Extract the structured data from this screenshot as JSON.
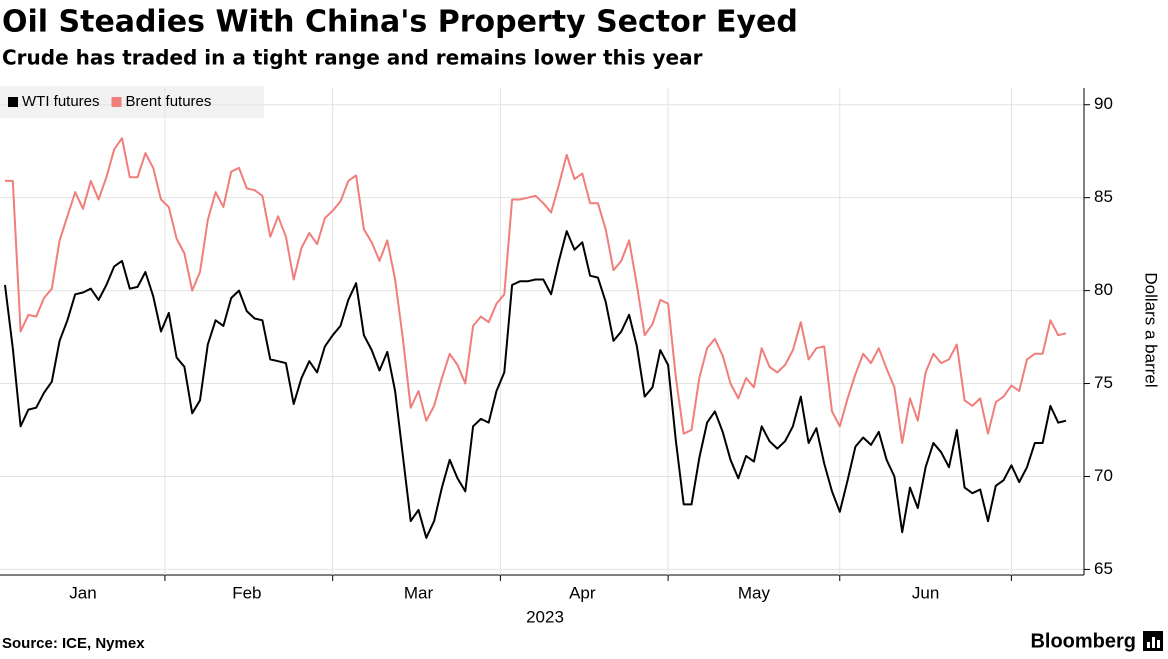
{
  "chart_data": {
    "type": "line",
    "title": "Oil Steadies With China's Property Sector Eyed",
    "subtitle": "Crude has traded in a tight range and remains lower this year",
    "ylabel": "Dollars a barrel",
    "xlabel": "2023",
    "source": "Source: ICE, Nymex",
    "brand": "Bloomberg",
    "y_axis_side": "right",
    "legend": "top-left",
    "grid": true,
    "ylim": [
      64.7,
      90.9
    ],
    "yticks": [
      65,
      70,
      75,
      80,
      85,
      90
    ],
    "categories": [
      null,
      null,
      null,
      null,
      null,
      null,
      null,
      null,
      null,
      null,
      "Jan",
      null,
      null,
      null,
      null,
      null,
      null,
      null,
      null,
      null,
      null,
      null,
      null,
      null,
      null,
      null,
      null,
      null,
      null,
      null,
      null,
      "Feb",
      null,
      null,
      null,
      null,
      null,
      null,
      null,
      null,
      null,
      null,
      null,
      null,
      null,
      null,
      null,
      null,
      null,
      null,
      null,
      null,
      null,
      "Mar",
      null,
      null,
      null,
      null,
      null,
      null,
      null,
      null,
      null,
      null,
      null,
      null,
      null,
      null,
      null,
      null,
      null,
      null,
      null,
      null,
      "Apr",
      null,
      null,
      null,
      null,
      null,
      null,
      null,
      null,
      null,
      null,
      null,
      null,
      null,
      null,
      null,
      null,
      null,
      null,
      null,
      null,
      null,
      "May",
      null,
      null,
      null,
      null,
      null,
      null,
      null,
      null,
      null,
      null,
      null,
      null,
      null,
      null,
      null,
      null,
      null,
      null,
      null,
      null,
      null,
      "Jun",
      null,
      null,
      null,
      null,
      null,
      null,
      null,
      null,
      null,
      null,
      null,
      null,
      null,
      null,
      null,
      null,
      null,
      null
    ],
    "series": [
      {
        "name": "WTI futures",
        "color": "#000000",
        "values": [
          80.3,
          76.9,
          72.7,
          73.6,
          73.7,
          74.5,
          75.1,
          77.3,
          78.4,
          79.8,
          79.9,
          80.1,
          79.5,
          80.3,
          81.3,
          81.6,
          80.1,
          80.2,
          81.0,
          79.7,
          77.8,
          78.8,
          76.4,
          75.9,
          73.4,
          74.1,
          77.1,
          78.4,
          78.1,
          79.6,
          80.0,
          78.9,
          78.5,
          78.4,
          76.3,
          76.2,
          76.1,
          73.9,
          75.3,
          76.2,
          75.6,
          77.0,
          77.6,
          78.1,
          79.5,
          80.4,
          77.6,
          76.8,
          75.7,
          76.7,
          74.6,
          71.1,
          67.6,
          68.2,
          66.7,
          67.6,
          69.4,
          70.9,
          69.9,
          69.2,
          72.7,
          73.1,
          72.9,
          74.6,
          75.6,
          80.3,
          80.5,
          80.5,
          80.6,
          80.6,
          79.8,
          81.6,
          83.2,
          82.2,
          82.6,
          80.8,
          80.7,
          79.4,
          77.3,
          77.8,
          78.7,
          77.0,
          74.3,
          74.8,
          76.8,
          76.0,
          71.9,
          68.5,
          68.5,
          71.0,
          72.9,
          73.5,
          72.4,
          70.9,
          69.9,
          71.1,
          70.8,
          72.7,
          71.9,
          71.5,
          71.9,
          72.7,
          74.3,
          71.8,
          72.6,
          70.7,
          69.2,
          68.1,
          69.8,
          71.6,
          72.1,
          71.7,
          72.4,
          70.9,
          70.0,
          67.0,
          69.4,
          68.3,
          70.5,
          71.8,
          71.3,
          70.5,
          72.5,
          69.4,
          69.1,
          69.3,
          67.6,
          69.5,
          69.8,
          70.6,
          69.7,
          70.5,
          71.8,
          71.8,
          73.8,
          72.9,
          73.0
        ]
      },
      {
        "name": "Brent futures",
        "color": "#f07e7b",
        "values": [
          85.9,
          85.9,
          77.8,
          78.7,
          78.6,
          79.6,
          80.1,
          82.7,
          84.0,
          85.3,
          84.4,
          85.9,
          84.9,
          86.1,
          87.6,
          88.2,
          86.1,
          86.1,
          87.4,
          86.6,
          84.9,
          84.5,
          82.8,
          82.0,
          80.0,
          81.0,
          83.8,
          85.3,
          84.5,
          86.4,
          86.6,
          85.5,
          85.4,
          85.1,
          82.9,
          84.0,
          82.9,
          80.6,
          82.3,
          83.1,
          82.5,
          83.9,
          84.3,
          84.8,
          85.9,
          86.2,
          83.3,
          82.6,
          81.6,
          82.7,
          80.6,
          77.4,
          73.7,
          74.6,
          73.0,
          73.8,
          75.3,
          76.6,
          76.0,
          75.0,
          78.1,
          78.6,
          78.3,
          79.3,
          79.8,
          84.9,
          84.9,
          85.0,
          85.1,
          84.7,
          84.2,
          85.7,
          87.3,
          86.0,
          86.3,
          84.7,
          84.7,
          83.3,
          81.1,
          81.6,
          82.7,
          80.3,
          77.6,
          78.2,
          79.5,
          79.3,
          75.3,
          72.3,
          72.5,
          75.3,
          76.9,
          77.4,
          76.5,
          75.0,
          74.2,
          75.3,
          74.8,
          76.9,
          75.9,
          75.6,
          76.0,
          76.8,
          78.3,
          76.3,
          76.9,
          77.0,
          73.5,
          72.7,
          74.2,
          75.5,
          76.6,
          76.1,
          76.9,
          75.8,
          74.8,
          71.8,
          74.2,
          73.0,
          75.6,
          76.6,
          76.1,
          76.3,
          77.1,
          74.1,
          73.8,
          74.2,
          72.3,
          74.0,
          74.3,
          74.9,
          74.6,
          76.3,
          76.6,
          76.6,
          78.4,
          77.6,
          77.7
        ]
      }
    ]
  }
}
